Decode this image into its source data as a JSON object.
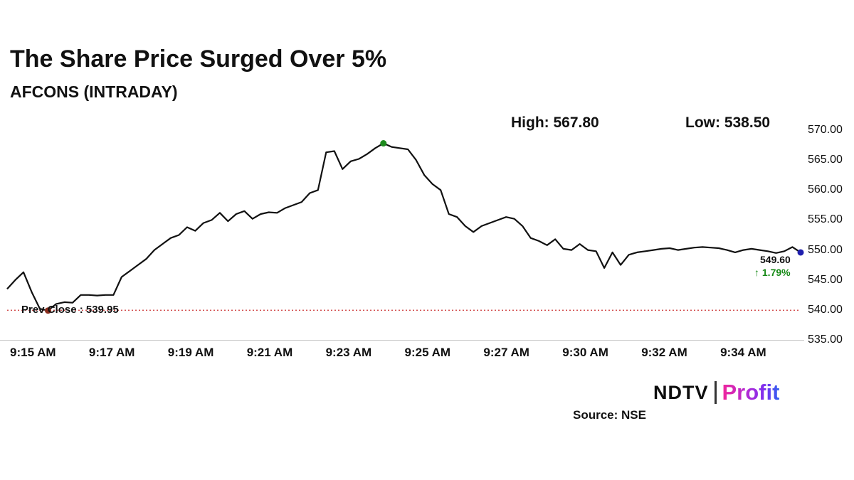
{
  "header": {
    "title": "The Share Price Surged Over 5%",
    "subtitle": "AFCONS (INTRADAY)"
  },
  "stats": {
    "high_label": "High: 567.80",
    "low_label": "Low: 538.50"
  },
  "chart_data": {
    "type": "line",
    "title": "The Share Price Surged Over 5%",
    "series_name": "AFCONS intraday price",
    "xlabel": "",
    "ylabel": "",
    "ylim": [
      535,
      570
    ],
    "grid": false,
    "legend": false,
    "x_tick_labels": [
      "9:15 AM",
      "9:17 AM",
      "9:19 AM",
      "9:21 AM",
      "9:23 AM",
      "9:25 AM",
      "9:27 AM",
      "9:30 AM",
      "9:32 AM",
      "9:34 AM"
    ],
    "y_tick_labels": [
      "570.00",
      "565.00",
      "560.00",
      "555.00",
      "550.00",
      "545.00",
      "540.00",
      "535.00"
    ],
    "y_tick_values": [
      570,
      565,
      560,
      555,
      550,
      545,
      540,
      535
    ],
    "values": [
      543.5,
      545.0,
      546.3,
      543.0,
      540.2,
      539.9,
      541.0,
      541.3,
      541.2,
      542.5,
      542.5,
      542.4,
      542.5,
      542.5,
      545.5,
      546.5,
      547.5,
      548.5,
      550.0,
      551.0,
      552.0,
      552.5,
      553.8,
      553.2,
      554.5,
      555.0,
      556.2,
      554.8,
      556.0,
      556.5,
      555.2,
      556.0,
      556.3,
      556.2,
      557.0,
      557.5,
      558.0,
      559.5,
      560.0,
      566.3,
      566.5,
      563.5,
      564.8,
      565.2,
      566.0,
      567.0,
      567.8,
      567.2,
      567.0,
      566.8,
      565.0,
      562.5,
      561.0,
      560.0,
      556.0,
      555.5,
      554.0,
      553.0,
      554.0,
      554.5,
      555.0,
      555.5,
      555.2,
      554.0,
      552.0,
      551.5,
      550.8,
      551.8,
      550.2,
      550.0,
      551.0,
      550.0,
      549.8,
      547.0,
      549.6,
      547.5,
      549.2,
      549.6,
      549.8,
      550.0,
      550.2,
      550.3,
      550.0,
      550.2,
      550.4,
      550.5,
      550.4,
      550.3,
      550.0,
      549.6,
      550.0,
      550.2,
      550.0,
      549.8,
      549.5,
      549.8,
      550.5,
      549.6
    ],
    "high": 567.8,
    "low": 538.5,
    "last_price": "549.60",
    "change_label": "↑ 1.79%",
    "prev_close": 539.95,
    "prev_close_label": "Prev Close : 539.95",
    "line_color": "#111111",
    "prev_close_line_color": "#cc3333",
    "change_color": "#178a17",
    "markers": [
      {
        "index": 5,
        "color": "#8b2e1e",
        "name": "open-marker"
      },
      {
        "index": 46,
        "color": "#1e8b1e",
        "name": "high-marker"
      },
      {
        "index": 97,
        "color": "#1f1fae",
        "name": "last-marker"
      }
    ]
  },
  "footer": {
    "brand_ndtv": "NDTV",
    "brand_profit": "Profit",
    "source": "Source: NSE"
  }
}
